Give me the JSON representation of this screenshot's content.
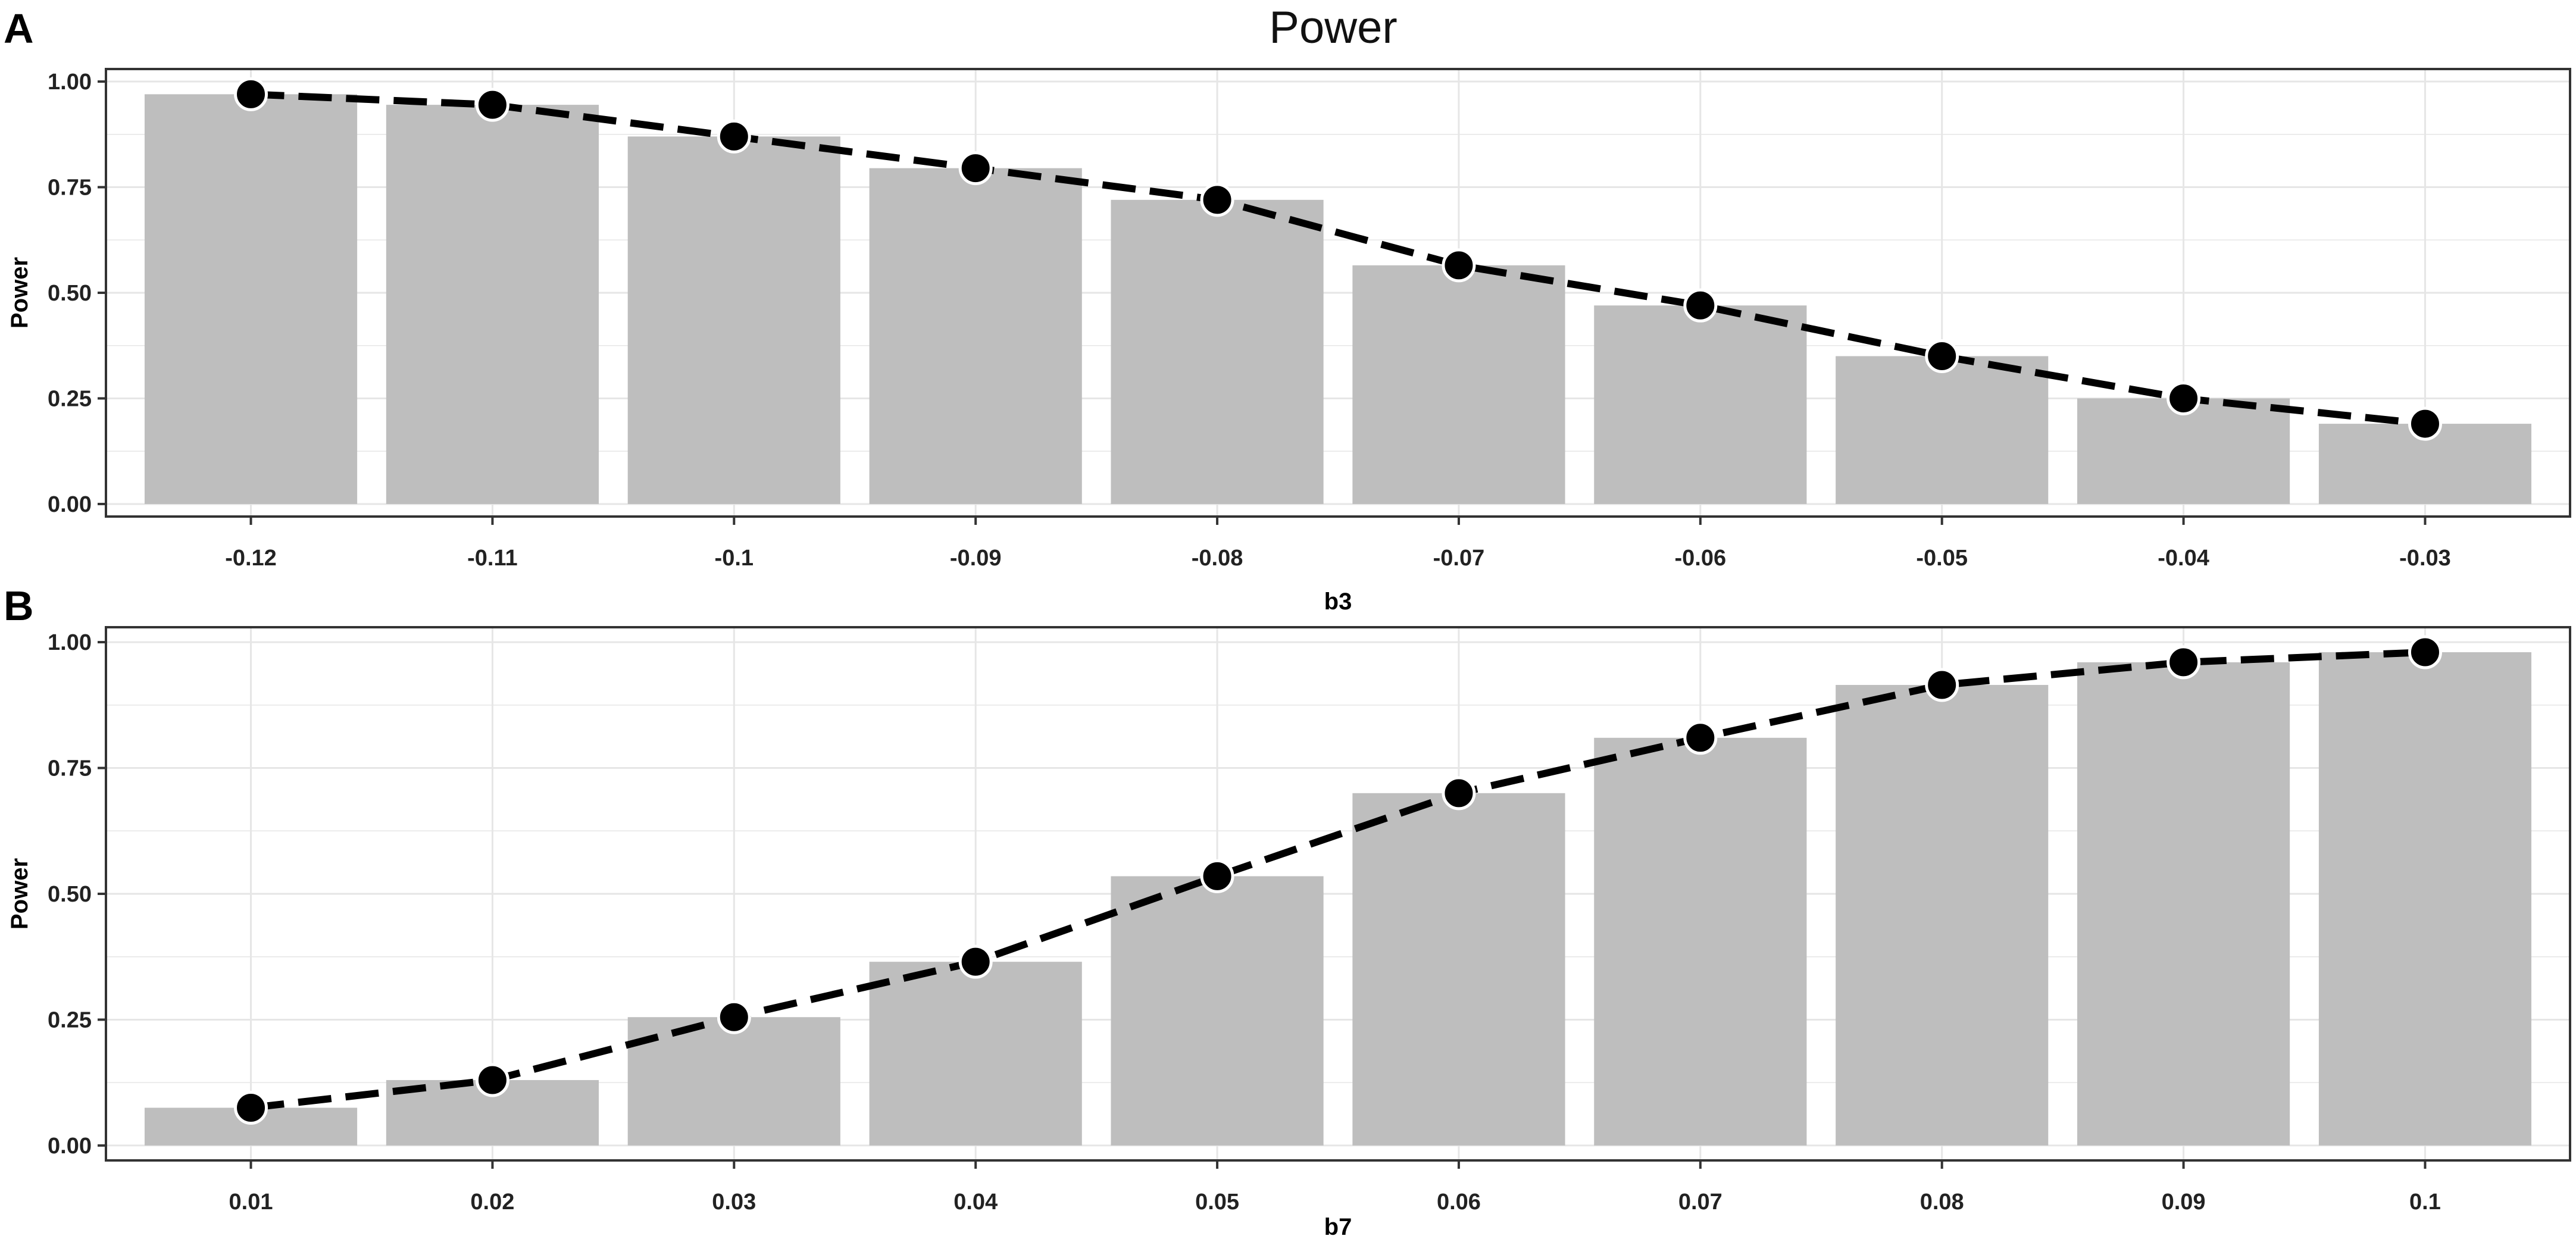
{
  "figure": {
    "title": "Power"
  },
  "colors": {
    "bar_fill": "#bebebe",
    "line": "#000000",
    "grid": "#e6e6e6",
    "panel_border": "#333333"
  },
  "chart_data": [
    {
      "panel": "A",
      "type": "bar",
      "overlay": "line with points (dashed)",
      "xlabel": "b3",
      "ylabel": "Power",
      "categories": [
        "-0.12",
        "-0.11",
        "-0.1",
        "-0.09",
        "-0.08",
        "-0.07",
        "-0.06",
        "-0.05",
        "-0.04",
        "-0.03"
      ],
      "values": [
        0.97,
        0.945,
        0.87,
        0.795,
        0.72,
        0.565,
        0.47,
        0.35,
        0.25,
        0.19
      ],
      "ylim": [
        0,
        1
      ],
      "yticks": [
        "0.00",
        "0.25",
        "0.50",
        "0.75",
        "1.00"
      ],
      "grid": true
    },
    {
      "panel": "B",
      "type": "bar",
      "overlay": "line with points (dashed)",
      "xlabel": "b7",
      "ylabel": "Power",
      "categories": [
        "0.01",
        "0.02",
        "0.03",
        "0.04",
        "0.05",
        "0.06",
        "0.07",
        "0.08",
        "0.09",
        "0.1"
      ],
      "values": [
        0.075,
        0.13,
        0.255,
        0.365,
        0.535,
        0.7,
        0.81,
        0.915,
        0.96,
        0.98
      ],
      "ylim": [
        0,
        1
      ],
      "yticks": [
        "0.00",
        "0.25",
        "0.50",
        "0.75",
        "1.00"
      ],
      "grid": true
    }
  ]
}
